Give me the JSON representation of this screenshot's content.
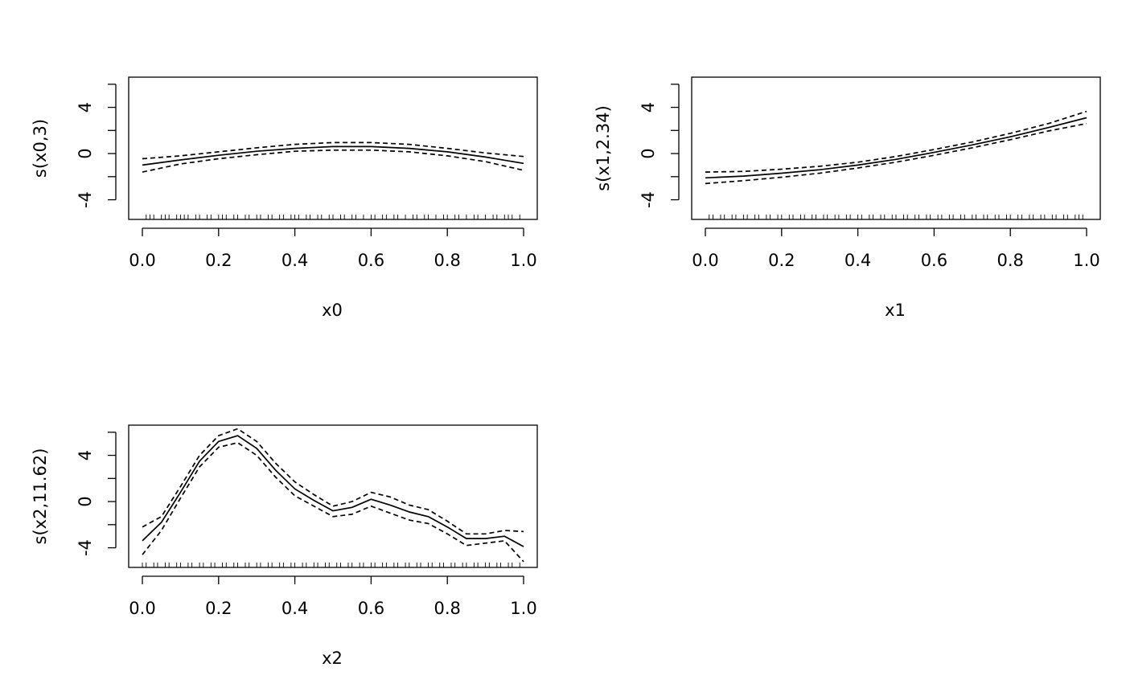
{
  "chart_data": [
    {
      "type": "line",
      "xlabel": "x0",
      "ylabel": "s(x0,3)",
      "xlim": [
        0.0,
        1.0
      ],
      "ylim": [
        -5.7,
        6.3
      ],
      "xticks": [
        0.0,
        0.2,
        0.4,
        0.6,
        0.8,
        1.0
      ],
      "xtick_labels": [
        "0.0",
        "0.2",
        "0.4",
        "0.6",
        "0.8",
        "1.0"
      ],
      "yticks": [
        -4,
        -2,
        0,
        2,
        4,
        6
      ],
      "ytick_labels": [
        "-4",
        "",
        "0",
        "",
        "4",
        ""
      ],
      "series": [
        {
          "style": "solid",
          "x": [
            0.0,
            0.1,
            0.2,
            0.3,
            0.4,
            0.5,
            0.6,
            0.7,
            0.8,
            0.9,
            1.0
          ],
          "y": [
            -1.0,
            -0.55,
            -0.15,
            0.2,
            0.45,
            0.6,
            0.6,
            0.45,
            0.15,
            -0.3,
            -0.85
          ]
        },
        {
          "style": "dashed",
          "x": [
            0.0,
            0.1,
            0.2,
            0.3,
            0.4,
            0.5,
            0.6,
            0.7,
            0.8,
            0.9,
            1.0
          ],
          "y": [
            -0.45,
            -0.2,
            0.15,
            0.5,
            0.8,
            0.95,
            0.95,
            0.8,
            0.45,
            0.05,
            -0.25
          ]
        },
        {
          "style": "dashed",
          "x": [
            0.0,
            0.1,
            0.2,
            0.3,
            0.4,
            0.5,
            0.6,
            0.7,
            0.8,
            0.9,
            1.0
          ],
          "y": [
            -1.6,
            -0.9,
            -0.45,
            -0.1,
            0.2,
            0.3,
            0.3,
            0.15,
            -0.2,
            -0.7,
            -1.45
          ]
        }
      ],
      "rug": [
        0.01,
        0.02,
        0.03,
        0.05,
        0.06,
        0.07,
        0.09,
        0.1,
        0.11,
        0.12,
        0.14,
        0.15,
        0.17,
        0.18,
        0.2,
        0.21,
        0.22,
        0.24,
        0.25,
        0.27,
        0.28,
        0.3,
        0.31,
        0.33,
        0.34,
        0.36,
        0.37,
        0.39,
        0.4,
        0.41,
        0.43,
        0.44,
        0.46,
        0.47,
        0.49,
        0.5,
        0.52,
        0.53,
        0.55,
        0.56,
        0.58,
        0.6,
        0.61,
        0.63,
        0.64,
        0.66,
        0.67,
        0.69,
        0.71,
        0.72,
        0.74,
        0.75,
        0.77,
        0.79,
        0.8,
        0.82,
        0.83,
        0.85,
        0.87,
        0.88,
        0.9,
        0.92,
        0.93,
        0.95,
        0.96,
        0.97,
        0.99
      ]
    },
    {
      "type": "line",
      "xlabel": "x1",
      "ylabel": "s(x1,2.34)",
      "xlim": [
        0.0,
        1.0
      ],
      "ylim": [
        -5.7,
        6.3
      ],
      "xticks": [
        0.0,
        0.2,
        0.4,
        0.6,
        0.8,
        1.0
      ],
      "xtick_labels": [
        "0.0",
        "0.2",
        "0.4",
        "0.6",
        "0.8",
        "1.0"
      ],
      "yticks": [
        -4,
        -2,
        0,
        2,
        4,
        6
      ],
      "ytick_labels": [
        "-4",
        "",
        "0",
        "",
        "4",
        ""
      ],
      "series": [
        {
          "style": "solid",
          "x": [
            0.0,
            0.1,
            0.2,
            0.3,
            0.4,
            0.5,
            0.6,
            0.7,
            0.8,
            0.9,
            1.0
          ],
          "y": [
            -2.1,
            -1.95,
            -1.7,
            -1.4,
            -1.0,
            -0.5,
            0.1,
            0.75,
            1.45,
            2.25,
            3.1
          ]
        },
        {
          "style": "dashed",
          "x": [
            0.0,
            0.1,
            0.2,
            0.3,
            0.4,
            0.5,
            0.6,
            0.7,
            0.8,
            0.9,
            1.0
          ],
          "y": [
            -1.6,
            -1.55,
            -1.35,
            -1.1,
            -0.75,
            -0.25,
            0.35,
            1.0,
            1.75,
            2.6,
            3.65
          ]
        },
        {
          "style": "dashed",
          "x": [
            0.0,
            0.1,
            0.2,
            0.3,
            0.4,
            0.5,
            0.6,
            0.7,
            0.8,
            0.9,
            1.0
          ],
          "y": [
            -2.6,
            -2.35,
            -2.05,
            -1.7,
            -1.25,
            -0.75,
            -0.15,
            0.5,
            1.2,
            1.95,
            2.6
          ]
        }
      ],
      "rug": [
        0.01,
        0.02,
        0.04,
        0.05,
        0.07,
        0.08,
        0.1,
        0.11,
        0.13,
        0.14,
        0.16,
        0.17,
        0.19,
        0.2,
        0.22,
        0.23,
        0.25,
        0.26,
        0.28,
        0.29,
        0.31,
        0.32,
        0.34,
        0.35,
        0.37,
        0.38,
        0.4,
        0.41,
        0.43,
        0.44,
        0.46,
        0.47,
        0.49,
        0.5,
        0.52,
        0.53,
        0.55,
        0.56,
        0.58,
        0.59,
        0.61,
        0.62,
        0.64,
        0.65,
        0.67,
        0.68,
        0.7,
        0.71,
        0.73,
        0.74,
        0.76,
        0.77,
        0.79,
        0.8,
        0.82,
        0.83,
        0.85,
        0.86,
        0.88,
        0.89,
        0.91,
        0.92,
        0.94,
        0.95,
        0.97,
        0.98,
        0.99
      ]
    },
    {
      "type": "line",
      "xlabel": "x2",
      "ylabel": "s(x2,11.62)",
      "xlim": [
        0.0,
        1.0
      ],
      "ylim": [
        -5.7,
        6.3
      ],
      "xticks": [
        0.0,
        0.2,
        0.4,
        0.6,
        0.8,
        1.0
      ],
      "xtick_labels": [
        "0.0",
        "0.2",
        "0.4",
        "0.6",
        "0.8",
        "1.0"
      ],
      "yticks": [
        -4,
        -2,
        0,
        2,
        4,
        6
      ],
      "ytick_labels": [
        "-4",
        "",
        "0",
        "",
        "4",
        ""
      ],
      "series": [
        {
          "style": "solid",
          "x": [
            0.0,
            0.05,
            0.1,
            0.15,
            0.2,
            0.25,
            0.3,
            0.35,
            0.4,
            0.45,
            0.5,
            0.55,
            0.6,
            0.65,
            0.7,
            0.75,
            0.8,
            0.85,
            0.9,
            0.95,
            1.0
          ],
          "y": [
            -3.4,
            -1.8,
            0.8,
            3.5,
            5.2,
            5.7,
            4.6,
            2.7,
            1.1,
            0.1,
            -0.8,
            -0.5,
            0.2,
            -0.3,
            -0.9,
            -1.3,
            -2.2,
            -3.2,
            -3.2,
            -3.0,
            -3.9
          ]
        },
        {
          "style": "dashed",
          "x": [
            0.0,
            0.05,
            0.1,
            0.15,
            0.2,
            0.25,
            0.3,
            0.35,
            0.4,
            0.45,
            0.5,
            0.55,
            0.6,
            0.65,
            0.7,
            0.75,
            0.8,
            0.85,
            0.9,
            0.95,
            1.0
          ],
          "y": [
            -2.2,
            -1.3,
            1.3,
            4.0,
            5.7,
            6.3,
            5.2,
            3.3,
            1.7,
            0.6,
            -0.4,
            0.0,
            0.8,
            0.4,
            -0.3,
            -0.7,
            -1.7,
            -2.8,
            -2.8,
            -2.5,
            -2.6
          ]
        },
        {
          "style": "dashed",
          "x": [
            0.0,
            0.05,
            0.1,
            0.15,
            0.2,
            0.25,
            0.3,
            0.35,
            0.4,
            0.45,
            0.5,
            0.55,
            0.6,
            0.65,
            0.7,
            0.75,
            0.8,
            0.85,
            0.9,
            0.95,
            1.0
          ],
          "y": [
            -4.6,
            -2.5,
            0.3,
            3.0,
            4.7,
            5.1,
            4.0,
            2.1,
            0.5,
            -0.4,
            -1.3,
            -1.1,
            -0.4,
            -1.0,
            -1.6,
            -1.9,
            -2.8,
            -3.8,
            -3.6,
            -3.4,
            -5.2
          ]
        }
      ],
      "rug": [
        0.0,
        0.01,
        0.03,
        0.04,
        0.06,
        0.07,
        0.09,
        0.1,
        0.12,
        0.13,
        0.15,
        0.16,
        0.18,
        0.19,
        0.21,
        0.22,
        0.24,
        0.25,
        0.27,
        0.28,
        0.3,
        0.31,
        0.33,
        0.34,
        0.36,
        0.37,
        0.39,
        0.4,
        0.42,
        0.43,
        0.45,
        0.46,
        0.48,
        0.49,
        0.51,
        0.52,
        0.54,
        0.55,
        0.57,
        0.58,
        0.6,
        0.61,
        0.63,
        0.64,
        0.66,
        0.67,
        0.69,
        0.7,
        0.72,
        0.73,
        0.75,
        0.76,
        0.78,
        0.79,
        0.81,
        0.82,
        0.84,
        0.85,
        0.87,
        0.88,
        0.9,
        0.91,
        0.93,
        0.94,
        0.96,
        0.97,
        0.99
      ]
    }
  ]
}
